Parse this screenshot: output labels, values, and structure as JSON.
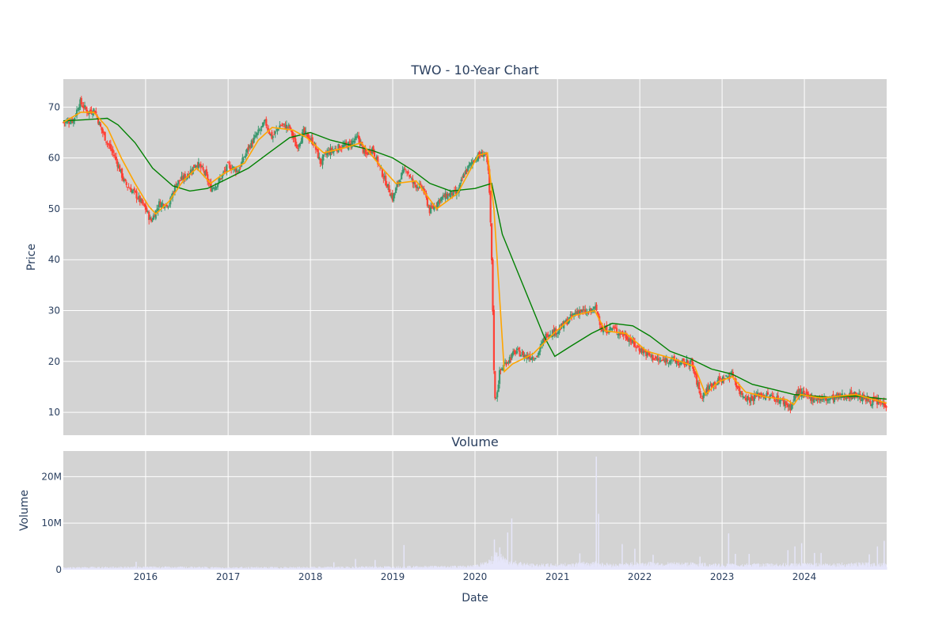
{
  "chart_data": [
    {
      "type": "candlestick",
      "title": "TWO - 10-Year Chart",
      "xlabel": "",
      "ylabel": "Price",
      "ylim": [
        5.5,
        75.5
      ],
      "xlim": [
        "2015-01-01",
        "2024-12-31"
      ],
      "yticks": [
        10,
        20,
        30,
        40,
        50,
        60,
        70
      ],
      "price_path": [
        [
          "2015-01-01",
          67.0
        ],
        [
          "2015-02-15",
          67.5
        ],
        [
          "2015-03-15",
          71.0
        ],
        [
          "2015-04-20",
          69.0
        ],
        [
          "2015-05-20",
          69.5
        ],
        [
          "2015-06-15",
          66.0
        ],
        [
          "2015-07-15",
          63.0
        ],
        [
          "2015-08-20",
          60.0
        ],
        [
          "2015-10-01",
          55.0
        ],
        [
          "2015-11-15",
          53.0
        ],
        [
          "2016-01-01",
          50.0
        ],
        [
          "2016-01-25",
          47.5
        ],
        [
          "2016-03-01",
          51.0
        ],
        [
          "2016-04-15",
          51.0
        ],
        [
          "2016-05-15",
          55.0
        ],
        [
          "2016-07-01",
          56.5
        ],
        [
          "2016-08-15",
          59.0
        ],
        [
          "2016-09-20",
          57.0
        ],
        [
          "2016-10-15",
          54.0
        ],
        [
          "2016-11-15",
          55.0
        ],
        [
          "2017-01-01",
          58.5
        ],
        [
          "2017-02-15",
          57.5
        ],
        [
          "2017-04-01",
          62.0
        ],
        [
          "2017-05-15",
          65.0
        ],
        [
          "2017-06-15",
          67.0
        ],
        [
          "2017-07-15",
          64.0
        ],
        [
          "2017-08-20",
          66.5
        ],
        [
          "2017-10-01",
          66.0
        ],
        [
          "2017-11-01",
          62.0
        ],
        [
          "2017-12-01",
          65.0
        ],
        [
          "2018-01-15",
          63.0
        ],
        [
          "2018-02-15",
          59.0
        ],
        [
          "2018-03-15",
          61.0
        ],
        [
          "2018-05-01",
          62.0
        ],
        [
          "2018-06-15",
          62.5
        ],
        [
          "2018-08-01",
          64.0
        ],
        [
          "2018-09-01",
          60.5
        ],
        [
          "2018-10-01",
          62.0
        ],
        [
          "2018-11-15",
          57.0
        ],
        [
          "2019-01-01",
          52.0
        ],
        [
          "2019-02-01",
          56.0
        ],
        [
          "2019-03-01",
          58.0
        ],
        [
          "2019-04-01",
          55.0
        ],
        [
          "2019-05-15",
          54.0
        ],
        [
          "2019-06-15",
          49.5
        ],
        [
          "2019-08-01",
          52.0
        ],
        [
          "2019-09-15",
          53.0
        ],
        [
          "2019-10-15",
          53.0
        ],
        [
          "2019-11-15",
          57.0
        ],
        [
          "2020-01-01",
          60.0
        ],
        [
          "2020-02-15",
          61.0
        ],
        [
          "2020-03-01",
          57.0
        ],
        [
          "2020-03-12",
          45.0
        ],
        [
          "2020-03-20",
          30.0
        ],
        [
          "2020-03-28",
          12.0
        ],
        [
          "2020-04-08",
          14.0
        ],
        [
          "2020-04-20",
          18.0
        ],
        [
          "2020-05-20",
          20.0
        ],
        [
          "2020-07-01",
          22.0
        ],
        [
          "2020-08-15",
          21.0
        ],
        [
          "2020-10-01",
          21.0
        ],
        [
          "2020-11-15",
          25.5
        ],
        [
          "2021-01-01",
          26.0
        ],
        [
          "2021-02-15",
          28.0
        ],
        [
          "2021-04-01",
          30.0
        ],
        [
          "2021-05-15",
          29.5
        ],
        [
          "2021-06-20",
          30.5
        ],
        [
          "2021-07-20",
          26.0
        ],
        [
          "2021-09-01",
          26.5
        ],
        [
          "2021-11-01",
          25.0
        ],
        [
          "2021-12-15",
          23.0
        ],
        [
          "2022-02-01",
          21.5
        ],
        [
          "2022-04-01",
          20.0
        ],
        [
          "2022-05-15",
          20.5
        ],
        [
          "2022-07-01",
          19.5
        ],
        [
          "2022-08-15",
          20.0
        ],
        [
          "2022-10-01",
          13.0
        ],
        [
          "2022-11-15",
          15.5
        ],
        [
          "2023-01-01",
          16.5
        ],
        [
          "2023-02-15",
          17.5
        ],
        [
          "2023-03-20",
          14.0
        ],
        [
          "2023-05-01",
          12.5
        ],
        [
          "2023-06-15",
          13.5
        ],
        [
          "2023-08-15",
          13.0
        ],
        [
          "2023-10-01",
          12.0
        ],
        [
          "2023-11-01",
          11.0
        ],
        [
          "2023-12-01",
          14.0
        ],
        [
          "2024-01-15",
          13.0
        ],
        [
          "2024-04-01",
          12.5
        ],
        [
          "2024-06-01",
          13.0
        ],
        [
          "2024-08-15",
          13.5
        ],
        [
          "2024-10-01",
          12.5
        ],
        [
          "2024-12-31",
          11.5
        ]
      ],
      "sma_short": [
        [
          "2015-01-01",
          67.0
        ],
        [
          "2015-03-20",
          69.0
        ],
        [
          "2015-05-15",
          69.0
        ],
        [
          "2015-07-15",
          66.0
        ],
        [
          "2015-09-15",
          60.0
        ],
        [
          "2015-11-15",
          55.0
        ],
        [
          "2016-01-15",
          50.5
        ],
        [
          "2016-02-15",
          49.0
        ],
        [
          "2016-04-15",
          51.5
        ],
        [
          "2016-06-15",
          55.5
        ],
        [
          "2016-08-15",
          58.0
        ],
        [
          "2016-10-15",
          55.0
        ],
        [
          "2016-12-15",
          57.0
        ],
        [
          "2017-03-15",
          59.0
        ],
        [
          "2017-05-15",
          63.5
        ],
        [
          "2017-07-15",
          66.0
        ],
        [
          "2017-10-15",
          65.5
        ],
        [
          "2017-12-15",
          64.0
        ],
        [
          "2018-03-01",
          61.0
        ],
        [
          "2018-06-01",
          62.0
        ],
        [
          "2018-08-15",
          63.0
        ],
        [
          "2018-11-15",
          58.0
        ],
        [
          "2019-01-15",
          55.0
        ],
        [
          "2019-04-15",
          55.5
        ],
        [
          "2019-07-15",
          50.0
        ],
        [
          "2019-10-15",
          53.0
        ],
        [
          "2020-01-15",
          60.5
        ],
        [
          "2020-02-25",
          61.0
        ],
        [
          "2020-03-25",
          50.0
        ],
        [
          "2020-04-20",
          32.0
        ],
        [
          "2020-05-10",
          18.0
        ],
        [
          "2020-06-15",
          19.5
        ],
        [
          "2020-09-15",
          21.5
        ],
        [
          "2020-12-15",
          25.5
        ],
        [
          "2021-03-15",
          29.0
        ],
        [
          "2021-06-15",
          30.0
        ],
        [
          "2021-08-01",
          26.0
        ],
        [
          "2021-11-01",
          25.5
        ],
        [
          "2022-02-01",
          22.0
        ],
        [
          "2022-06-01",
          20.5
        ],
        [
          "2022-09-01",
          19.0
        ],
        [
          "2022-10-20",
          13.5
        ],
        [
          "2022-12-15",
          16.0
        ],
        [
          "2023-02-15",
          17.0
        ],
        [
          "2023-04-15",
          14.0
        ],
        [
          "2023-07-15",
          13.0
        ],
        [
          "2023-10-15",
          12.5
        ],
        [
          "2023-11-15",
          11.5
        ],
        [
          "2023-12-15",
          13.5
        ],
        [
          "2024-03-15",
          12.8
        ],
        [
          "2024-08-15",
          13.5
        ],
        [
          "2024-12-31",
          11.8
        ]
      ],
      "sma_long": [
        [
          "2015-01-01",
          67.3
        ],
        [
          "2015-04-01",
          67.5
        ],
        [
          "2015-07-15",
          67.8
        ],
        [
          "2015-09-01",
          66.5
        ],
        [
          "2015-11-15",
          63.0
        ],
        [
          "2016-02-01",
          58.0
        ],
        [
          "2016-05-01",
          54.5
        ],
        [
          "2016-07-15",
          53.5
        ],
        [
          "2016-10-01",
          54.0
        ],
        [
          "2017-01-01",
          56.0
        ],
        [
          "2017-04-01",
          58.0
        ],
        [
          "2017-07-01",
          61.0
        ],
        [
          "2017-10-01",
          64.0
        ],
        [
          "2018-01-01",
          65.0
        ],
        [
          "2018-04-01",
          63.5
        ],
        [
          "2018-07-01",
          62.5
        ],
        [
          "2018-10-01",
          61.5
        ],
        [
          "2019-01-01",
          60.0
        ],
        [
          "2019-04-01",
          57.5
        ],
        [
          "2019-06-15",
          55.0
        ],
        [
          "2019-09-15",
          53.5
        ],
        [
          "2020-01-01",
          54.0
        ],
        [
          "2020-03-15",
          55.0
        ],
        [
          "2020-05-01",
          45.0
        ],
        [
          "2020-08-01",
          35.0
        ],
        [
          "2020-11-01",
          25.0
        ],
        [
          "2020-12-20",
          21.0
        ],
        [
          "2021-03-01",
          23.0
        ],
        [
          "2021-06-01",
          25.5
        ],
        [
          "2021-09-01",
          27.5
        ],
        [
          "2021-12-01",
          27.0
        ],
        [
          "2022-02-15",
          25.0
        ],
        [
          "2022-05-15",
          22.0
        ],
        [
          "2022-08-15",
          20.5
        ],
        [
          "2022-11-15",
          18.5
        ],
        [
          "2023-02-15",
          17.5
        ],
        [
          "2023-05-15",
          15.5
        ],
        [
          "2023-08-15",
          14.5
        ],
        [
          "2023-11-15",
          13.5
        ],
        [
          "2024-04-15",
          13.0
        ],
        [
          "2024-08-15",
          13.2
        ],
        [
          "2024-12-31",
          12.6
        ]
      ],
      "up_color": "#3d9970",
      "down_color": "#ff4136",
      "sma_short_color": "#ffa500",
      "sma_long_color": "#008000",
      "plot_bg": "#d3d3d3",
      "grid": true
    },
    {
      "type": "bar",
      "title": "Volume",
      "xlabel": "Date",
      "ylabel": "Volume",
      "ylim": [
        0,
        25500000
      ],
      "yticks": [
        {
          "v": 0,
          "label": "0"
        },
        {
          "v": 10000000,
          "label": "10M"
        },
        {
          "v": 20000000,
          "label": "20M"
        }
      ],
      "xticks": [
        "2016",
        "2017",
        "2018",
        "2019",
        "2020",
        "2021",
        "2022",
        "2023",
        "2024"
      ],
      "volume_profile": [
        [
          "2015-01-01",
          450000
        ],
        [
          "2016-01-01",
          550000
        ],
        [
          "2017-01-01",
          450000
        ],
        [
          "2018-01-01",
          480000
        ],
        [
          "2019-01-01",
          600000
        ],
        [
          "2019-12-15",
          700000
        ],
        [
          "2020-03-01",
          1500000
        ],
        [
          "2020-04-01",
          3000000
        ],
        [
          "2020-06-01",
          1800000
        ],
        [
          "2020-09-01",
          1000000
        ],
        [
          "2021-01-01",
          1000000
        ],
        [
          "2021-06-15",
          1400000
        ],
        [
          "2021-09-01",
          1000000
        ],
        [
          "2022-01-01",
          1300000
        ],
        [
          "2022-09-01",
          1200000
        ],
        [
          "2023-01-01",
          1000000
        ],
        [
          "2024-01-01",
          1100000
        ],
        [
          "2024-12-31",
          1200000
        ]
      ],
      "volume_spikes": [
        [
          "2015-11-20",
          1700000
        ],
        [
          "2018-04-15",
          1600000
        ],
        [
          "2018-07-20",
          2300000
        ],
        [
          "2018-10-15",
          2100000
        ],
        [
          "2019-02-20",
          5300000
        ],
        [
          "2020-03-27",
          6500000
        ],
        [
          "2020-04-20",
          4800000
        ],
        [
          "2020-05-25",
          8000000
        ],
        [
          "2020-06-12",
          11000000
        ],
        [
          "2021-04-10",
          3500000
        ],
        [
          "2021-06-22",
          24300000
        ],
        [
          "2021-07-02",
          12000000
        ],
        [
          "2021-10-15",
          5500000
        ],
        [
          "2021-12-10",
          4500000
        ],
        [
          "2022-03-01",
          3200000
        ],
        [
          "2022-09-25",
          2800000
        ],
        [
          "2023-01-30",
          7800000
        ],
        [
          "2023-03-01",
          3400000
        ],
        [
          "2023-05-01",
          3400000
        ],
        [
          "2023-10-20",
          4200000
        ],
        [
          "2023-11-20",
          5000000
        ],
        [
          "2023-12-20",
          5700000
        ],
        [
          "2024-02-15",
          3600000
        ],
        [
          "2024-03-15",
          3600000
        ],
        [
          "2024-10-15",
          3300000
        ],
        [
          "2024-11-20",
          5000000
        ],
        [
          "2024-12-20",
          6200000
        ]
      ],
      "bar_color": "#e6e6fa"
    }
  ]
}
